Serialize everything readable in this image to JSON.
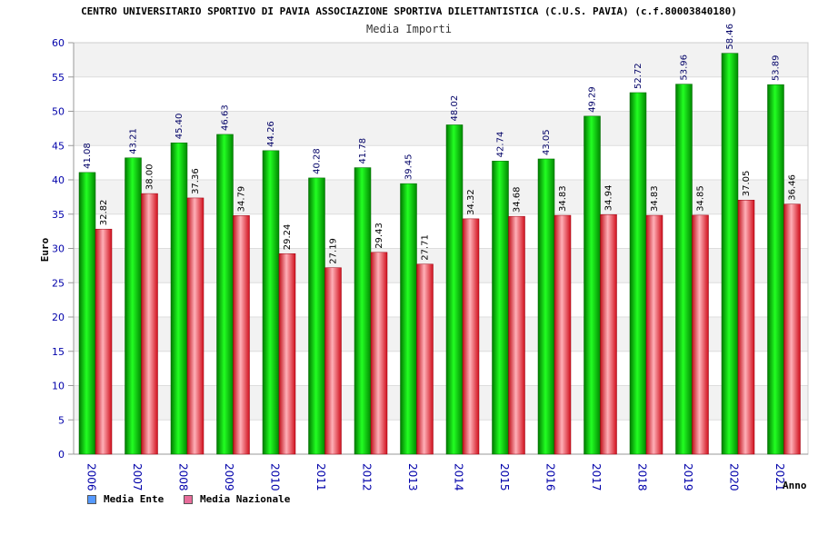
{
  "header": {
    "title": "CENTRO UNIVERSITARIO SPORTIVO DI PAVIA ASSOCIAZIONE SPORTIVA DILETTANTISTICA (C.U.S. PAVIA) (c.f.80003840180)",
    "subtitle": "Media Importi"
  },
  "chart_data": {
    "type": "bar",
    "title": "Media Importi",
    "xlabel": "Anno",
    "ylabel": "Euro",
    "ylim": [
      0,
      60
    ],
    "ytick_step": 5,
    "grid": true,
    "legend_position": "bottom-left",
    "categories": [
      "2006",
      "2007",
      "2008",
      "2009",
      "2010",
      "2011",
      "2012",
      "2013",
      "2014",
      "2015",
      "2016",
      "2017",
      "2018",
      "2019",
      "2020",
      "2021"
    ],
    "series": [
      {
        "name": "Media Ente",
        "color": "#00cc00",
        "legend_color": "#5599ff",
        "values": [
          41.08,
          43.21,
          45.4,
          46.63,
          44.26,
          40.28,
          41.78,
          39.45,
          48.02,
          42.74,
          43.05,
          49.29,
          52.72,
          53.96,
          58.46,
          53.89
        ],
        "labels": [
          "41.08",
          "43.21",
          "45.40",
          "46.63",
          "44.26",
          "40.28",
          "41.78",
          "39.45",
          "48.02",
          "42.74",
          "43.05",
          "49.29",
          "52.72",
          "53.96",
          "58.46",
          "53.89"
        ]
      },
      {
        "name": "Media Nazionale",
        "color": "#e8202a",
        "legend_color": "#e86c9a",
        "values": [
          32.82,
          38.0,
          37.36,
          34.79,
          29.24,
          27.19,
          29.43,
          27.71,
          34.32,
          34.68,
          34.83,
          34.94,
          34.83,
          34.85,
          37.05,
          36.46
        ],
        "labels": [
          "32.82",
          "38.00",
          "37.36",
          "34.79",
          "29.24",
          "27.19",
          "29.43",
          "27.71",
          "34.32",
          "34.68",
          "34.83",
          "34.94",
          "34.83",
          "34.85",
          "37.05",
          "36.46"
        ]
      }
    ]
  }
}
